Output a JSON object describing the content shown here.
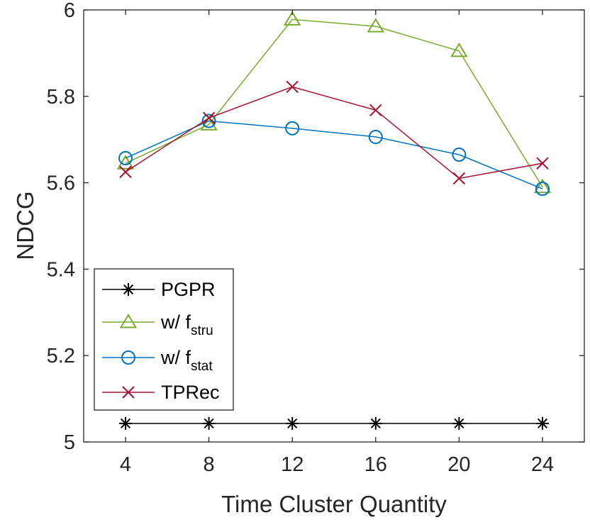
{
  "chart_data": {
    "type": "line",
    "xlabel": "Time Cluster Quantity",
    "ylabel": "NDCG",
    "x": [
      4,
      8,
      12,
      16,
      20,
      24
    ],
    "xticks": [
      "4",
      "8",
      "12",
      "16",
      "20",
      "24"
    ],
    "yticks": [
      "5",
      "5.2",
      "5.4",
      "5.6",
      "5.8",
      "6"
    ],
    "ylim": [
      5,
      6
    ],
    "grid": false,
    "legend_position": "bottom-left",
    "series": [
      {
        "name": "PGPR",
        "name_base": "PGPR",
        "name_sub": "",
        "marker": "asterisk",
        "color": "#000000",
        "values": [
          5.043,
          5.043,
          5.043,
          5.043,
          5.043,
          5.043
        ]
      },
      {
        "name": "w/ f_stru",
        "name_base": "w/ f",
        "name_sub": "stru",
        "marker": "triangle",
        "color": "#77AC30",
        "values": [
          5.645,
          5.735,
          5.978,
          5.962,
          5.905,
          5.59
        ]
      },
      {
        "name": "w/ f_stat",
        "name_base": "w/ f",
        "name_sub": "stat",
        "marker": "circle",
        "color": "#0072BD",
        "values": [
          5.657,
          5.743,
          5.726,
          5.706,
          5.665,
          5.586
        ]
      },
      {
        "name": "TPRec",
        "name_base": "TPRec",
        "name_sub": "",
        "marker": "x",
        "color": "#A2142F",
        "values": [
          5.625,
          5.75,
          5.822,
          5.768,
          5.61,
          5.645
        ]
      }
    ]
  }
}
